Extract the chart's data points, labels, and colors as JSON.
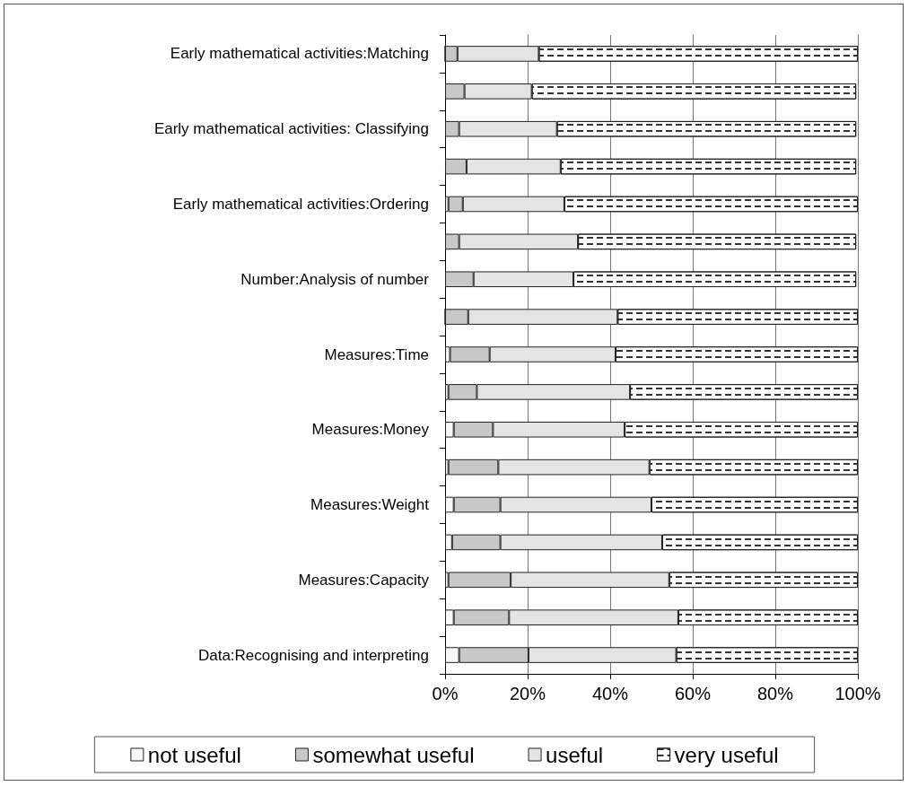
{
  "chart_data": {
    "type": "bar",
    "orientation": "horizontal",
    "stacked": true,
    "categories": [
      "Early mathematical activities:Matching",
      null,
      "Early mathematical activities: Classifying",
      null,
      "Early mathematical activities:Ordering",
      null,
      "Number:Analysis of number",
      null,
      "Measures:Time",
      null,
      "Measures:Money",
      null,
      "Measures:Weight",
      null,
      "Measures:Capacity",
      null,
      "Data:Recognising and interpreting"
    ],
    "series": [
      {
        "name": "not useful",
        "color": "#f8f8f8",
        "values": [
          0,
          null,
          null,
          null,
          0.8,
          null,
          null,
          0,
          1.2,
          0.8,
          2.1,
          0.8,
          2.1,
          1.7,
          0.8,
          2.1,
          3.4
        ]
      },
      {
        "name": "somewhat useful",
        "color": "#c8c8c8",
        "values": [
          3.0,
          4.7,
          3.4,
          5.2,
          3.5,
          3.4,
          6.9,
          5.6,
          9.6,
          6.9,
          9.5,
          12.1,
          11.3,
          11.7,
          15.1,
          13.4,
          16.8
        ]
      },
      {
        "name": "useful",
        "color": "#e4e4e4",
        "values": [
          19.7,
          16.3,
          23.7,
          22.8,
          24.6,
          28.8,
          24.2,
          36.2,
          30.5,
          37.1,
          31.9,
          36.6,
          36.6,
          39.2,
          38.4,
          41.0,
          35.8
        ]
      },
      {
        "name": "very useful",
        "color": "#ffffff",
        "values": [
          77.3,
          78.6,
          72.5,
          71.6,
          71.1,
          67.4,
          68.5,
          58.2,
          58.7,
          55.2,
          56.5,
          50.5,
          50.0,
          47.4,
          45.7,
          43.5,
          44.0
        ]
      }
    ],
    "xlim": [
      0,
      100
    ],
    "xticks": [
      {
        "value": 0,
        "label": "0%"
      },
      {
        "value": 20,
        "label": "20%"
      },
      {
        "value": 40,
        "label": "40%"
      },
      {
        "value": 60,
        "label": "60%"
      },
      {
        "value": 80,
        "label": "80%"
      },
      {
        "value": 100,
        "label": "100%"
      }
    ],
    "grid": "x",
    "legend": "bottom"
  }
}
